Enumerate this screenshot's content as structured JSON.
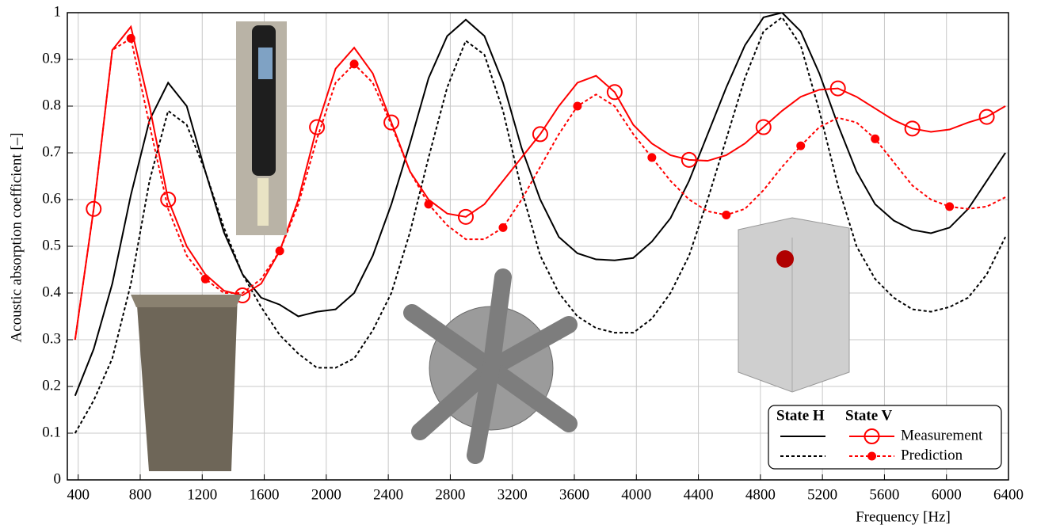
{
  "chart_data": {
    "type": "line",
    "xlabel": "Frequency [Hz]",
    "ylabel": "Acoustic absorption coefficient [–]",
    "xlim": [
      330,
      6400
    ],
    "ylim": [
      0,
      1
    ],
    "xticks": [
      400,
      800,
      1200,
      1600,
      2000,
      2400,
      2800,
      3200,
      3600,
      4000,
      4400,
      4800,
      5200,
      5600,
      6000,
      6400
    ],
    "yticks": [
      0,
      0.1,
      0.2,
      0.3,
      0.4,
      0.5,
      0.6,
      0.7,
      0.8,
      0.9,
      1
    ],
    "grid": true,
    "legend": "lower right",
    "x": [
      380,
      500,
      620,
      740,
      860,
      980,
      1100,
      1220,
      1340,
      1460,
      1580,
      1700,
      1820,
      1940,
      2060,
      2180,
      2300,
      2420,
      2540,
      2660,
      2780,
      2900,
      3020,
      3140,
      3260,
      3380,
      3500,
      3620,
      3740,
      3860,
      3980,
      4100,
      4220,
      4340,
      4460,
      4580,
      4700,
      4820,
      4940,
      5060,
      5180,
      5300,
      5420,
      5540,
      5660,
      5780,
      5900,
      6020,
      6140,
      6260,
      6380
    ],
    "series": [
      {
        "state": "State H",
        "name": "Measurement",
        "color": "#000000",
        "dash": false,
        "values": [
          0.18,
          0.28,
          0.42,
          0.61,
          0.77,
          0.85,
          0.8,
          0.66,
          0.53,
          0.44,
          0.39,
          0.375,
          0.35,
          0.36,
          0.365,
          0.4,
          0.48,
          0.59,
          0.72,
          0.86,
          0.95,
          0.985,
          0.95,
          0.85,
          0.71,
          0.6,
          0.52,
          0.485,
          0.472,
          0.47,
          0.475,
          0.51,
          0.56,
          0.64,
          0.74,
          0.84,
          0.93,
          0.99,
          1.0,
          0.96,
          0.87,
          0.76,
          0.66,
          0.59,
          0.555,
          0.535,
          0.528,
          0.54,
          0.58,
          0.64,
          0.7
        ]
      },
      {
        "state": "State H",
        "name": "Prediction",
        "color": "#000000",
        "dash": true,
        "values": [
          0.1,
          0.17,
          0.26,
          0.42,
          0.64,
          0.79,
          0.76,
          0.66,
          0.54,
          0.44,
          0.37,
          0.31,
          0.27,
          0.24,
          0.24,
          0.26,
          0.32,
          0.4,
          0.53,
          0.69,
          0.84,
          0.94,
          0.91,
          0.79,
          0.62,
          0.48,
          0.4,
          0.35,
          0.325,
          0.315,
          0.315,
          0.345,
          0.4,
          0.48,
          0.6,
          0.73,
          0.86,
          0.96,
          0.99,
          0.93,
          0.79,
          0.63,
          0.5,
          0.43,
          0.39,
          0.365,
          0.36,
          0.37,
          0.39,
          0.44,
          0.52
        ]
      },
      {
        "state": "State V",
        "name": "Measurement",
        "color": "#ff0000",
        "dash": false,
        "marker": "open-circle",
        "markevery": [
          1,
          4
        ],
        "values": [
          0.3,
          0.58,
          0.92,
          0.97,
          0.8,
          0.6,
          0.5,
          0.44,
          0.405,
          0.395,
          0.42,
          0.49,
          0.6,
          0.755,
          0.88,
          0.925,
          0.87,
          0.765,
          0.66,
          0.6,
          0.57,
          0.563,
          0.59,
          0.64,
          0.69,
          0.74,
          0.8,
          0.85,
          0.865,
          0.83,
          0.76,
          0.72,
          0.695,
          0.685,
          0.683,
          0.695,
          0.72,
          0.755,
          0.79,
          0.82,
          0.835,
          0.838,
          0.82,
          0.795,
          0.77,
          0.752,
          0.745,
          0.75,
          0.765,
          0.777,
          0.8
        ]
      },
      {
        "state": "State V",
        "name": "Prediction",
        "color": "#ff0000",
        "dash": true,
        "marker": "dot",
        "markevery": [
          3,
          4
        ],
        "values": [
          0.3,
          0.58,
          0.92,
          0.945,
          0.76,
          0.58,
          0.48,
          0.43,
          0.4,
          0.4,
          0.43,
          0.49,
          0.59,
          0.73,
          0.85,
          0.89,
          0.85,
          0.76,
          0.66,
          0.59,
          0.545,
          0.515,
          0.515,
          0.54,
          0.6,
          0.67,
          0.74,
          0.8,
          0.825,
          0.8,
          0.74,
          0.69,
          0.64,
          0.6,
          0.575,
          0.567,
          0.58,
          0.62,
          0.67,
          0.715,
          0.755,
          0.775,
          0.765,
          0.73,
          0.68,
          0.63,
          0.6,
          0.585,
          0.58,
          0.585,
          0.605
        ]
      }
    ]
  }
}
